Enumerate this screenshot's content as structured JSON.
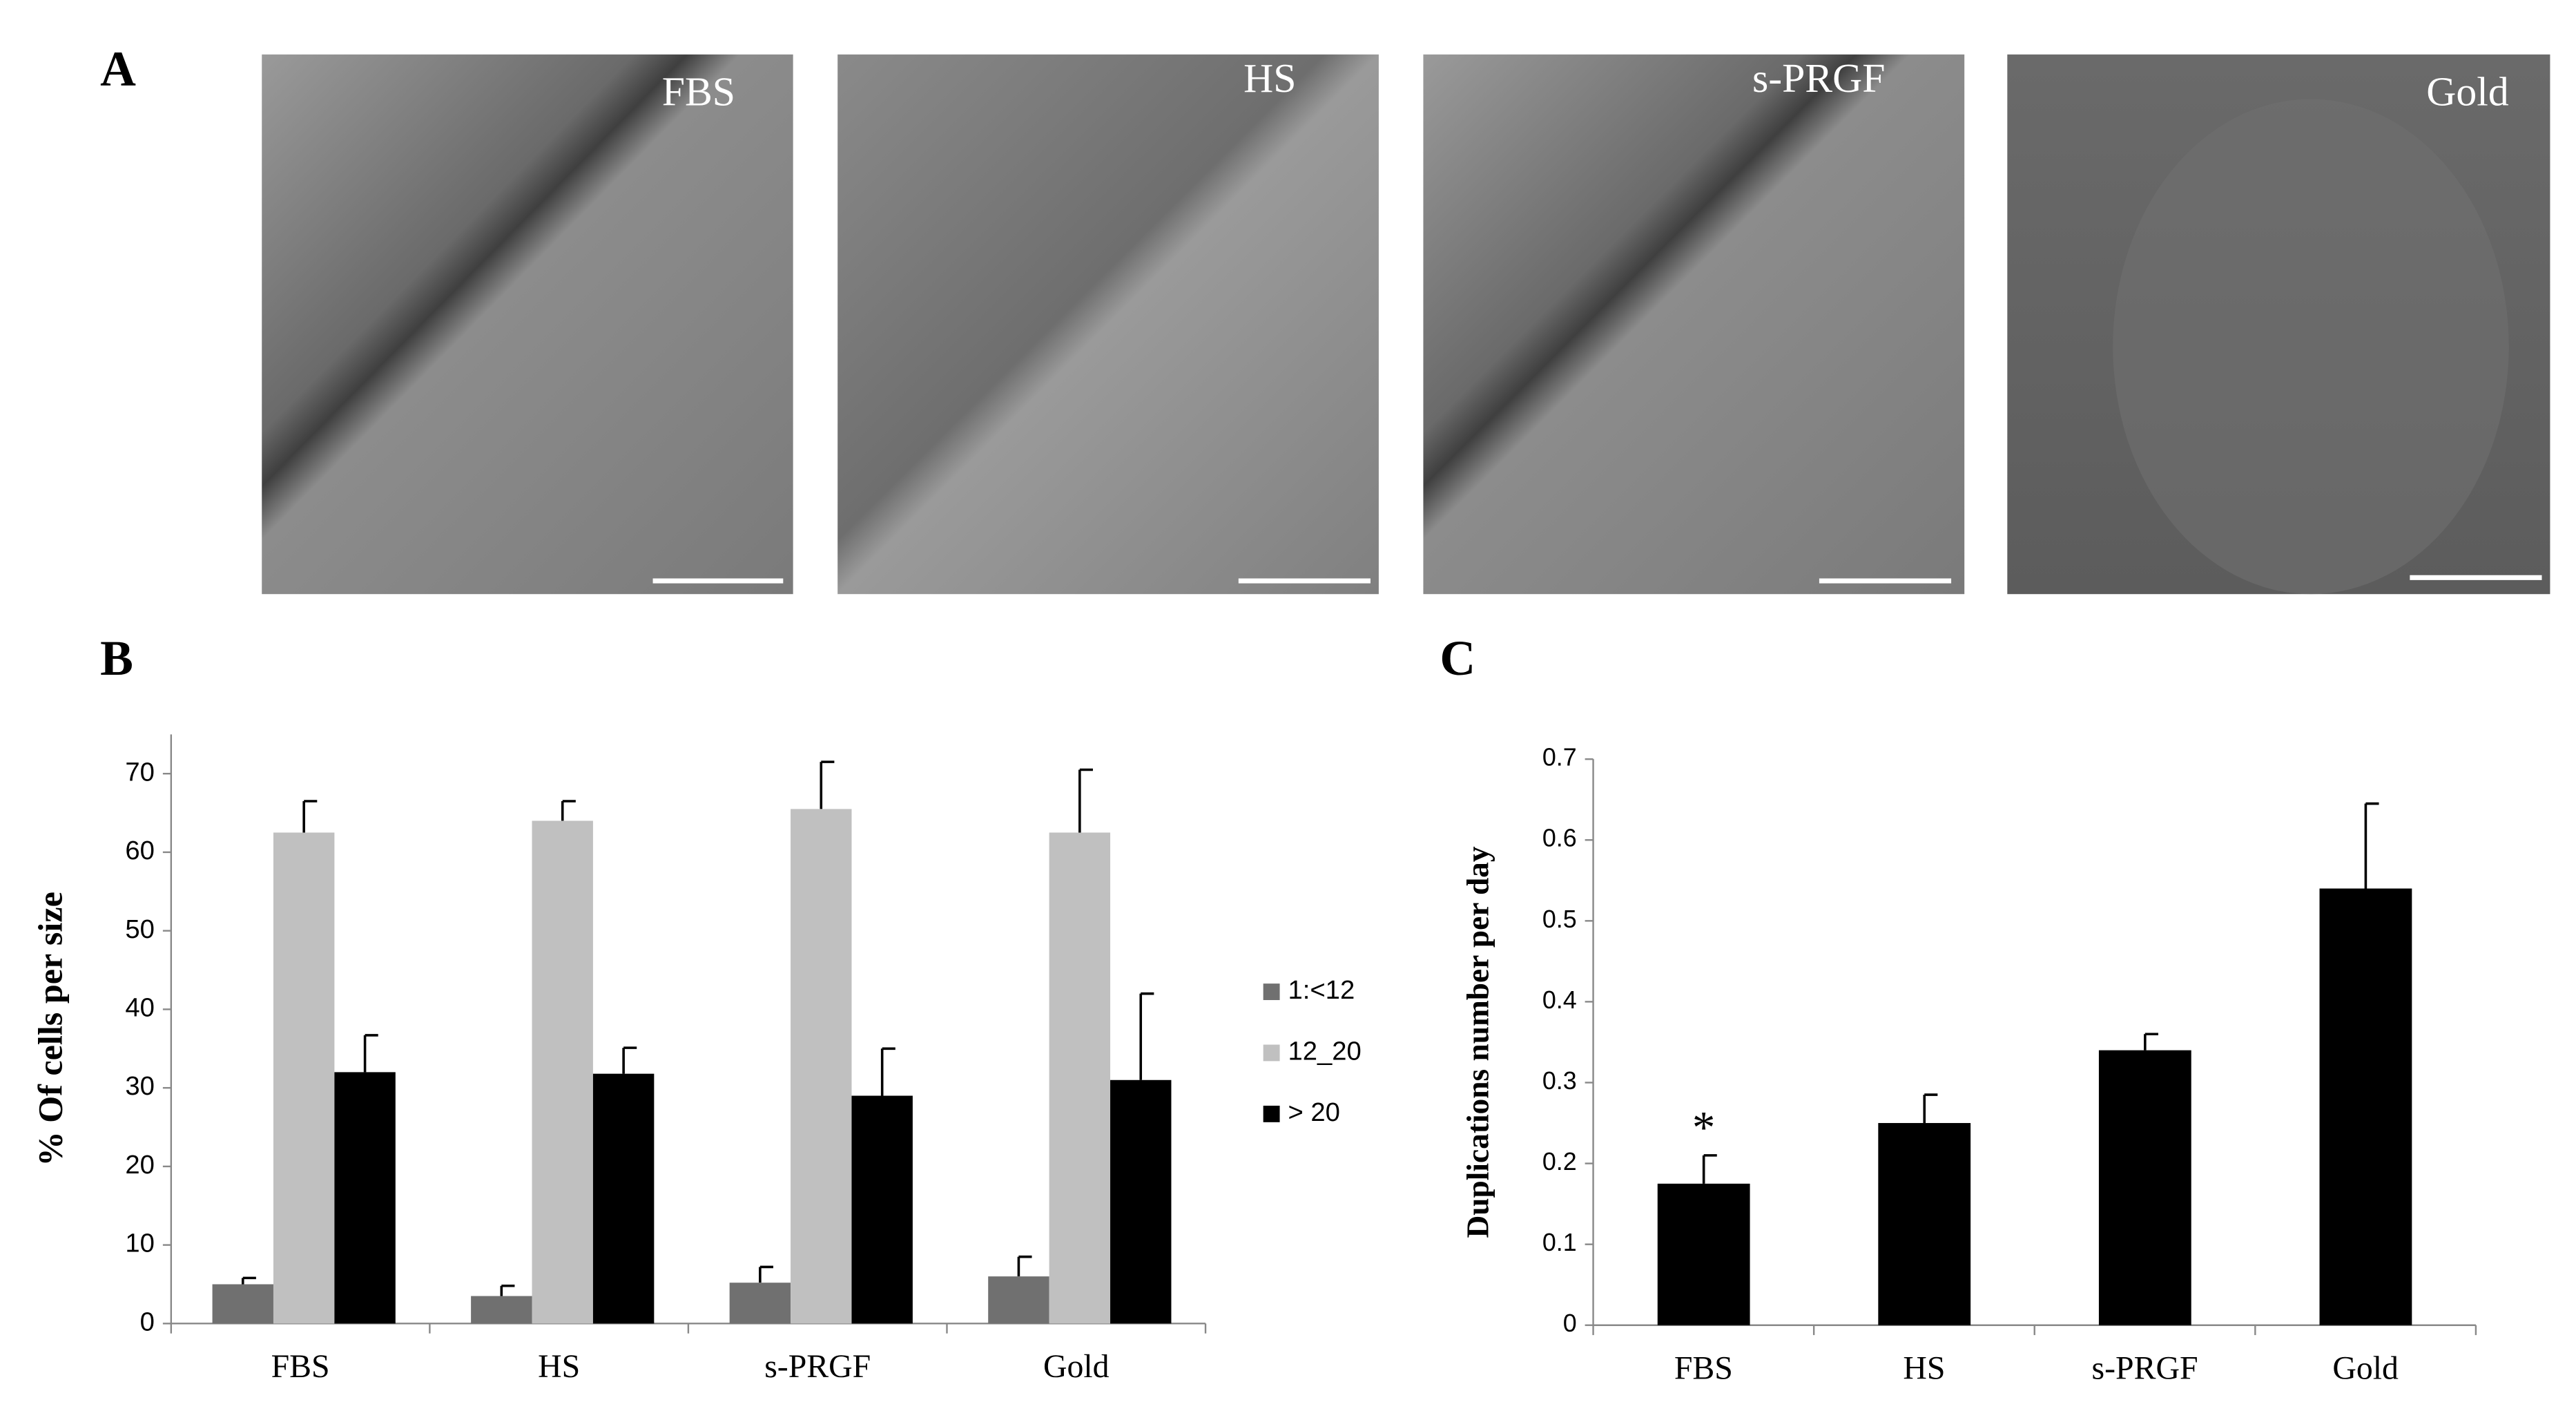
{
  "panels": {
    "a": "A",
    "b": "B",
    "c": "C"
  },
  "photos": [
    {
      "label": "FBS"
    },
    {
      "label": "HS"
    },
    {
      "label": "s-PRGF"
    },
    {
      "label": "Gold"
    }
  ],
  "chart_data": [
    {
      "type": "bar",
      "ylabel": "% Of cells per size",
      "categories": [
        "FBS",
        "HS",
        "s-PRGF",
        "Gold"
      ],
      "series": [
        {
          "name": "1:<12",
          "color": "#707070",
          "values": [
            5,
            3.5,
            5.2,
            6
          ],
          "errors": [
            0.8,
            1.3,
            2,
            2.5
          ]
        },
        {
          "name": "12_20",
          "color": "#c0c0c0",
          "values": [
            62.5,
            64,
            65.5,
            62.5
          ],
          "errors": [
            4,
            2.5,
            6,
            8
          ]
        },
        {
          "name": "> 20",
          "color": "#000000",
          "values": [
            32,
            31.8,
            29,
            31
          ],
          "errors": [
            4.7,
            3.3,
            6,
            11
          ]
        }
      ],
      "ylim": [
        0,
        75
      ],
      "yticks": [
        0,
        10,
        20,
        30,
        40,
        50,
        60,
        70
      ],
      "legend": "right"
    },
    {
      "type": "bar",
      "ylabel": "Duplications number  per day",
      "categories": [
        "FBS",
        "HS",
        "s-PRGF",
        "Gold"
      ],
      "values": [
        0.175,
        0.25,
        0.34,
        0.54
      ],
      "errors": [
        0.035,
        0.035,
        0.02,
        0.105
      ],
      "color": "#000000",
      "annotations": [
        {
          "text": "*",
          "category": 0
        }
      ],
      "ylim": [
        0,
        0.7
      ],
      "yticks": [
        0,
        0.1,
        0.2,
        0.3,
        0.4,
        0.5,
        0.6,
        0.7
      ]
    }
  ]
}
